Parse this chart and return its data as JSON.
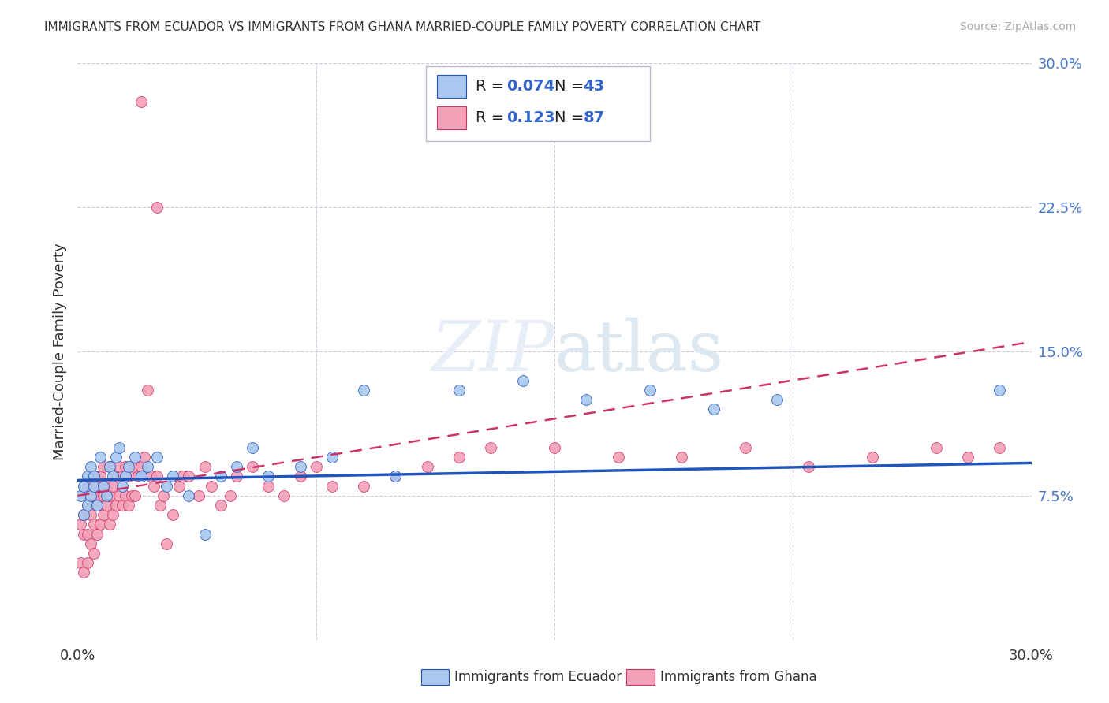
{
  "title": "IMMIGRANTS FROM ECUADOR VS IMMIGRANTS FROM GHANA MARRIED-COUPLE FAMILY POVERTY CORRELATION CHART",
  "source": "Source: ZipAtlas.com",
  "ylabel": "Married-Couple Family Poverty",
  "xlim": [
    0.0,
    0.3
  ],
  "ylim": [
    0.0,
    0.3
  ],
  "ecuador_color": "#A8C8F0",
  "ghana_color": "#F4A0B8",
  "ecuador_line_color": "#2255BB",
  "ghana_line_color": "#CC3366",
  "watermark": "ZIPatlas",
  "background_color": "#FFFFFF",
  "grid_color": "#DDDDEE",
  "ecuador_R": 0.074,
  "ecuador_N": 43,
  "ghana_R": 0.123,
  "ghana_N": 87,
  "ecuador_x": [
    0.001,
    0.002,
    0.002,
    0.003,
    0.003,
    0.004,
    0.004,
    0.005,
    0.005,
    0.006,
    0.007,
    0.008,
    0.009,
    0.01,
    0.011,
    0.012,
    0.013,
    0.014,
    0.015,
    0.016,
    0.018,
    0.02,
    0.022,
    0.025,
    0.028,
    0.03,
    0.035,
    0.04,
    0.045,
    0.05,
    0.055,
    0.06,
    0.07,
    0.08,
    0.09,
    0.1,
    0.12,
    0.14,
    0.16,
    0.18,
    0.2,
    0.22,
    0.29
  ],
  "ecuador_y": [
    0.075,
    0.08,
    0.065,
    0.085,
    0.07,
    0.09,
    0.075,
    0.08,
    0.085,
    0.07,
    0.095,
    0.08,
    0.075,
    0.09,
    0.085,
    0.095,
    0.1,
    0.08,
    0.085,
    0.09,
    0.095,
    0.085,
    0.09,
    0.095,
    0.08,
    0.085,
    0.075,
    0.055,
    0.085,
    0.09,
    0.1,
    0.085,
    0.09,
    0.095,
    0.13,
    0.085,
    0.13,
    0.135,
    0.125,
    0.13,
    0.12,
    0.125,
    0.13
  ],
  "ghana_x": [
    0.001,
    0.001,
    0.002,
    0.002,
    0.002,
    0.003,
    0.003,
    0.003,
    0.003,
    0.004,
    0.004,
    0.004,
    0.005,
    0.005,
    0.005,
    0.005,
    0.006,
    0.006,
    0.006,
    0.007,
    0.007,
    0.007,
    0.008,
    0.008,
    0.008,
    0.009,
    0.009,
    0.01,
    0.01,
    0.01,
    0.011,
    0.011,
    0.012,
    0.012,
    0.013,
    0.013,
    0.014,
    0.014,
    0.015,
    0.015,
    0.016,
    0.016,
    0.017,
    0.018,
    0.018,
    0.019,
    0.02,
    0.021,
    0.022,
    0.023,
    0.024,
    0.025,
    0.026,
    0.027,
    0.028,
    0.03,
    0.032,
    0.033,
    0.035,
    0.038,
    0.04,
    0.042,
    0.045,
    0.048,
    0.05,
    0.055,
    0.06,
    0.065,
    0.07,
    0.075,
    0.08,
    0.09,
    0.1,
    0.11,
    0.12,
    0.13,
    0.15,
    0.17,
    0.19,
    0.21,
    0.23,
    0.25,
    0.27,
    0.28,
    0.29,
    0.02,
    0.025
  ],
  "ghana_y": [
    0.04,
    0.06,
    0.035,
    0.055,
    0.065,
    0.04,
    0.055,
    0.07,
    0.08,
    0.05,
    0.065,
    0.08,
    0.045,
    0.06,
    0.075,
    0.085,
    0.055,
    0.07,
    0.08,
    0.06,
    0.075,
    0.085,
    0.065,
    0.075,
    0.09,
    0.07,
    0.08,
    0.06,
    0.075,
    0.09,
    0.065,
    0.08,
    0.07,
    0.085,
    0.075,
    0.09,
    0.07,
    0.085,
    0.075,
    0.09,
    0.07,
    0.085,
    0.075,
    0.09,
    0.075,
    0.085,
    0.09,
    0.095,
    0.13,
    0.085,
    0.08,
    0.085,
    0.07,
    0.075,
    0.05,
    0.065,
    0.08,
    0.085,
    0.085,
    0.075,
    0.09,
    0.08,
    0.07,
    0.075,
    0.085,
    0.09,
    0.08,
    0.075,
    0.085,
    0.09,
    0.08,
    0.08,
    0.085,
    0.09,
    0.095,
    0.1,
    0.1,
    0.095,
    0.095,
    0.1,
    0.09,
    0.095,
    0.1,
    0.095,
    0.1,
    0.28,
    0.225
  ]
}
